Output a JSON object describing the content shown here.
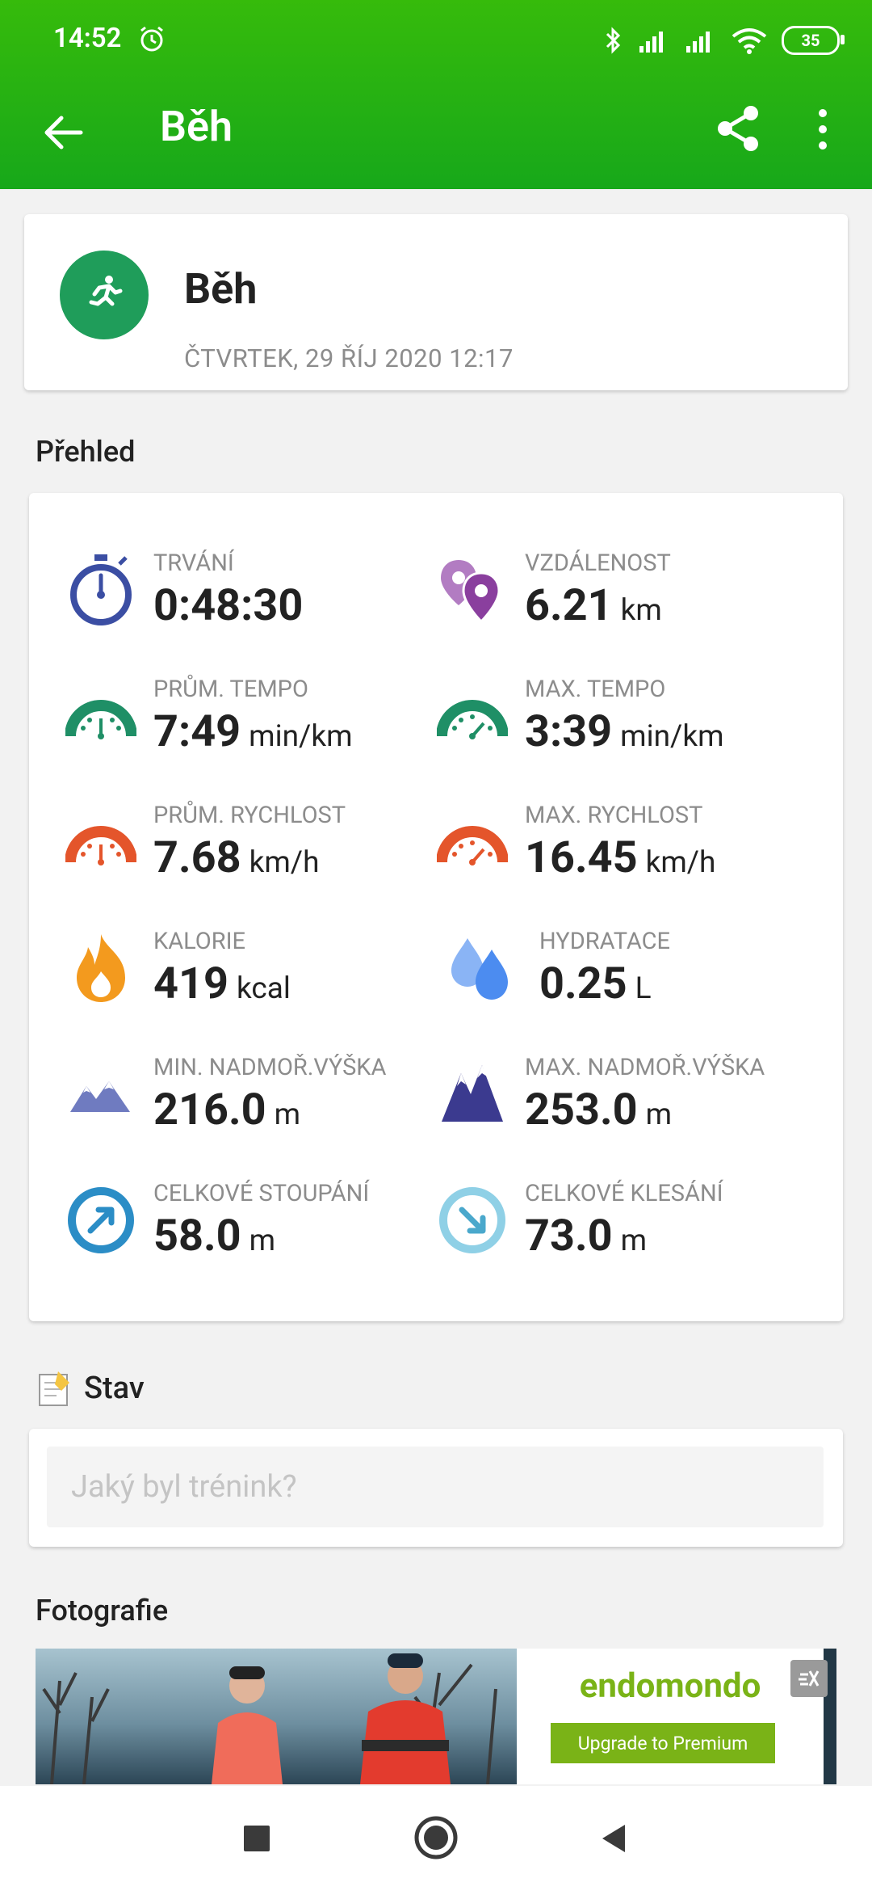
{
  "status_bar": {
    "time": "14:52",
    "battery": "35"
  },
  "toolbar": {
    "title": "Běh"
  },
  "activity": {
    "name": "Běh",
    "date": "ČTVRTEK, 29 ŘÍJ 2020 12:17"
  },
  "overview": {
    "title": "Přehled",
    "stats": [
      {
        "label": "TRVÁNÍ",
        "value": "0:48:30",
        "unit": ""
      },
      {
        "label": "VZDÁLENOST",
        "value": "6.21",
        "unit": "km"
      },
      {
        "label": "PRŮM. TEMPO",
        "value": "7:49",
        "unit": "min/km"
      },
      {
        "label": "MAX. TEMPO",
        "value": "3:39",
        "unit": "min/km"
      },
      {
        "label": "PRŮM. RYCHLOST",
        "value": "7.68",
        "unit": "km/h"
      },
      {
        "label": "MAX. RYCHLOST",
        "value": "16.45",
        "unit": "km/h"
      },
      {
        "label": "KALORIE",
        "value": "419",
        "unit": "kcal"
      },
      {
        "label": "HYDRATACE",
        "value": "0.25",
        "unit": "L"
      },
      {
        "label": "MIN. NADMOŘ.VÝŠKA",
        "value": "216.0",
        "unit": "m"
      },
      {
        "label": "MAX. NADMOŘ.VÝŠKA",
        "value": "253.0",
        "unit": "m"
      },
      {
        "label": "CELKOVÉ STOUPÁNÍ",
        "value": "58.0",
        "unit": "m"
      },
      {
        "label": "CELKOVÉ KLESÁNÍ",
        "value": "73.0",
        "unit": "m"
      }
    ]
  },
  "status_section": {
    "title": "Stav",
    "placeholder": "Jaký byl trénink?"
  },
  "photos": {
    "title": "Fotografie"
  },
  "ad": {
    "brand": "endomondo",
    "cta": "Upgrade to Premium"
  },
  "colors": {
    "header": "#1aab16",
    "activity_icon": "#1f9d5a",
    "duration": "#3b4ea3",
    "distance": "#8a3f9e",
    "pace": "#1f8f66",
    "speed": "#e4552b",
    "calories": "#f39a1e",
    "hydration": "#4c8cf0",
    "altitude_min": "#6f7bc0",
    "altitude_max": "#3b3a8f",
    "ascent": "#2b8dc6",
    "descent": "#8fd0e6"
  }
}
